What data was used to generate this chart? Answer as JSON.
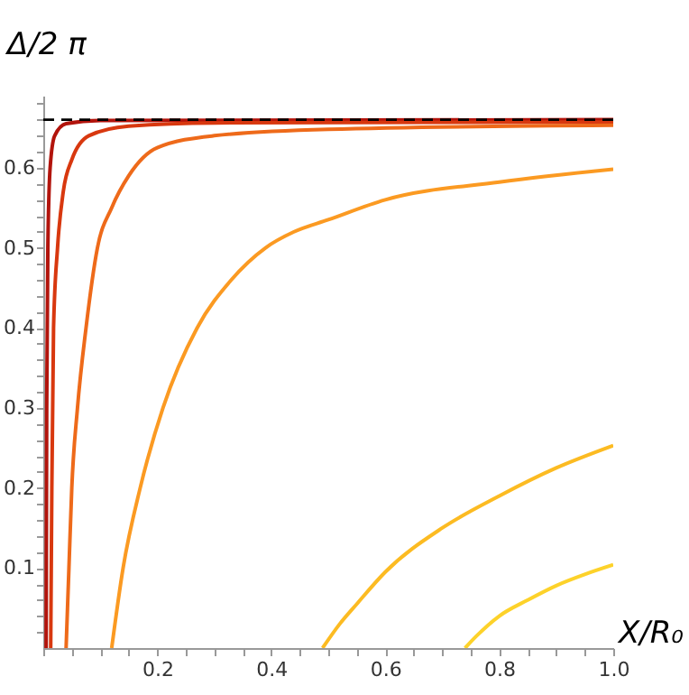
{
  "chart_data": {
    "type": "line",
    "xlabel": "X/R₀",
    "ylabel": "Δ/2 π",
    "xlim": [
      0,
      1.0
    ],
    "ylim": [
      0,
      0.69
    ],
    "xticks": [
      {
        "value": 0,
        "label": null
      },
      {
        "value": 0.05,
        "label": null
      },
      {
        "value": 0.1,
        "label": null
      },
      {
        "value": 0.15,
        "label": null
      },
      0.2,
      {
        "value": 0.25,
        "label": null
      },
      {
        "value": 0.3,
        "label": null
      },
      {
        "value": 0.35,
        "label": null
      },
      0.4,
      {
        "value": 0.45,
        "label": null
      },
      {
        "value": 0.5,
        "label": null
      },
      {
        "value": 0.55,
        "label": null
      },
      0.6,
      {
        "value": 0.65,
        "label": null
      },
      {
        "value": 0.7,
        "label": null
      },
      {
        "value": 0.75,
        "label": null
      },
      0.8,
      {
        "value": 0.85,
        "label": null
      },
      {
        "value": 0.9,
        "label": null
      },
      {
        "value": 0.95,
        "label": null
      },
      {
        "value": 1.0,
        "label": "1.0"
      }
    ],
    "yticks": [
      {
        "value": 0.02,
        "label": null
      },
      {
        "value": 0.04,
        "label": null
      },
      {
        "value": 0.06,
        "label": null
      },
      {
        "value": 0.08,
        "label": null
      },
      0.1,
      {
        "value": 0.12,
        "label": null
      },
      {
        "value": 0.14,
        "label": null
      },
      {
        "value": 0.16,
        "label": null
      },
      {
        "value": 0.18,
        "label": null
      },
      0.2,
      {
        "value": 0.22,
        "label": null
      },
      {
        "value": 0.24,
        "label": null
      },
      {
        "value": 0.26,
        "label": null
      },
      {
        "value": 0.28,
        "label": null
      },
      0.3,
      {
        "value": 0.32,
        "label": null
      },
      {
        "value": 0.34,
        "label": null
      },
      {
        "value": 0.36,
        "label": null
      },
      {
        "value": 0.38,
        "label": null
      },
      0.4,
      {
        "value": 0.42,
        "label": null
      },
      {
        "value": 0.44,
        "label": null
      },
      {
        "value": 0.46,
        "label": null
      },
      {
        "value": 0.48,
        "label": null
      },
      0.5,
      {
        "value": 0.52,
        "label": null
      },
      {
        "value": 0.54,
        "label": null
      },
      {
        "value": 0.56,
        "label": null
      },
      {
        "value": 0.58,
        "label": null
      },
      0.6,
      {
        "value": 0.62,
        "label": null
      },
      {
        "value": 0.64,
        "label": null
      },
      {
        "value": 0.66,
        "label": null
      },
      {
        "value": 0.68,
        "label": null
      }
    ],
    "grid": false,
    "line_style": "solid",
    "marker": "none",
    "ref_lines": [
      {
        "axis": "y",
        "value": 0.66,
        "color": "#000000",
        "line_style": "dashed"
      }
    ],
    "series": [
      {
        "color": "#b2140c",
        "x": [
          0.005,
          0.006,
          0.008,
          0.012,
          0.02,
          0.04,
          0.1,
          1.0
        ],
        "values": [
          0,
          0.3,
          0.5,
          0.6,
          0.64,
          0.655,
          0.659,
          0.66
        ]
      },
      {
        "color": "#d8380f",
        "x": [
          0.013,
          0.015,
          0.018,
          0.025,
          0.035,
          0.05,
          0.08,
          0.15,
          0.3,
          1.0
        ],
        "values": [
          0,
          0.2,
          0.4,
          0.5,
          0.57,
          0.61,
          0.64,
          0.652,
          0.656,
          0.657
        ]
      },
      {
        "color": "#ee6a1a",
        "x": [
          0.04,
          0.045,
          0.05,
          0.06,
          0.075,
          0.095,
          0.12,
          0.15,
          0.2,
          0.3,
          0.5,
          1.0
        ],
        "values": [
          0,
          0.1,
          0.2,
          0.3,
          0.4,
          0.5,
          0.55,
          0.59,
          0.625,
          0.64,
          0.648,
          0.653
        ]
      },
      {
        "color": "#fb9a22",
        "x": [
          0.12,
          0.14,
          0.17,
          0.21,
          0.27,
          0.33,
          0.39,
          0.44,
          0.5,
          0.6,
          0.8,
          1.0
        ],
        "values": [
          0,
          0.1,
          0.2,
          0.3,
          0.4,
          0.46,
          0.5,
          0.52,
          0.535,
          0.56,
          0.582,
          0.598
        ]
      },
      {
        "color": "#fcbb22",
        "x": [
          0.49,
          0.52,
          0.55,
          0.6,
          0.7,
          0.8,
          0.9,
          1.0
        ],
        "values": [
          0,
          0.03,
          0.055,
          0.095,
          0.15,
          0.19,
          0.225,
          0.253
        ]
      },
      {
        "color": "#fdd22a",
        "x": [
          0.74,
          0.76,
          0.8,
          0.85,
          0.9,
          0.95,
          1.0
        ],
        "values": [
          0,
          0.015,
          0.04,
          0.06,
          0.078,
          0.092,
          0.104
        ]
      }
    ]
  }
}
